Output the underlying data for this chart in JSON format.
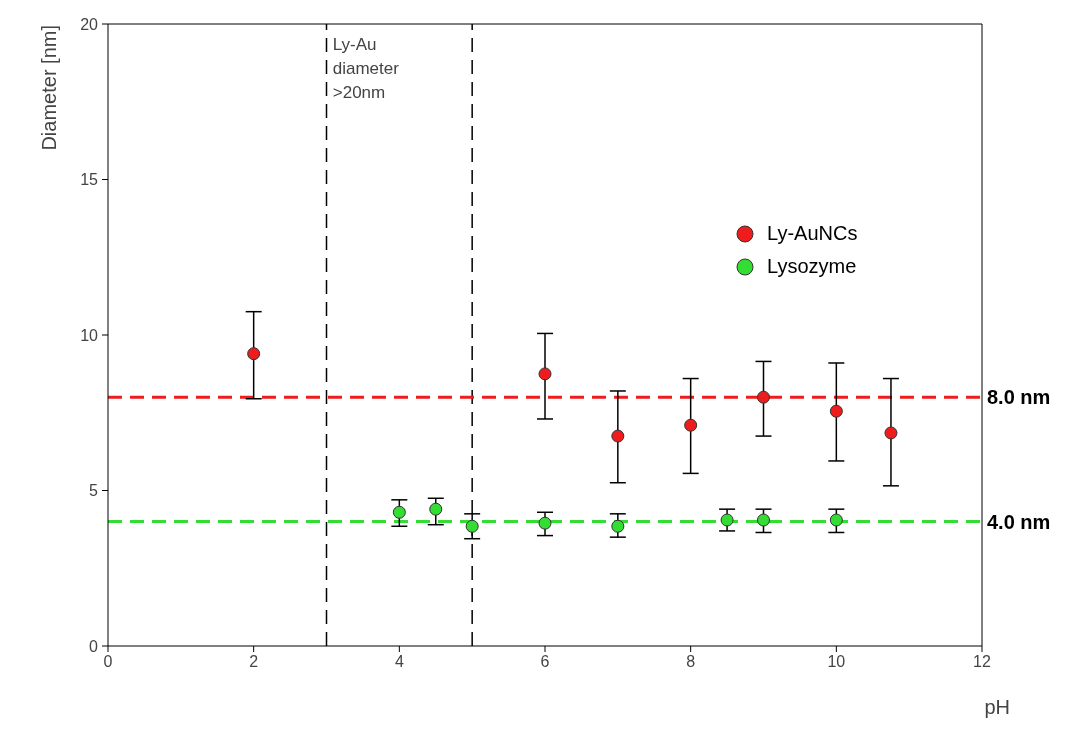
{
  "chart_data": {
    "type": "scatter",
    "xlabel": "pH",
    "ylabel": "Diameter [nm]",
    "xlim": [
      0,
      12
    ],
    "xticks": [
      0,
      2,
      4,
      6,
      8,
      10,
      12
    ],
    "ylim": [
      0,
      20
    ],
    "yticks": [
      0,
      5,
      10,
      15,
      20
    ],
    "marker": "circle",
    "legend": "right",
    "grid": false,
    "series": [
      {
        "name": "Ly-AuNCs",
        "color": "#ee1c1c",
        "x": [
          2,
          6,
          7,
          8,
          9,
          10,
          10.75
        ],
        "values": [
          9.4,
          8.75,
          6.75,
          7.1,
          8.0,
          7.55,
          6.85
        ],
        "errors": [
          [
            7.95,
            10.75
          ],
          [
            7.3,
            10.05
          ],
          [
            5.25,
            8.2
          ],
          [
            5.55,
            8.6
          ],
          [
            6.75,
            9.15
          ],
          [
            5.95,
            9.1
          ],
          [
            5.15,
            8.6
          ]
        ]
      },
      {
        "name": "Lysozyme",
        "color": "#33dd33",
        "x": [
          4,
          4.5,
          5,
          6,
          7,
          8.5,
          9,
          10
        ],
        "values": [
          4.3,
          4.4,
          3.85,
          3.95,
          3.85,
          4.05,
          4.05,
          4.05
        ],
        "errors": [
          [
            3.85,
            4.7
          ],
          [
            3.9,
            4.75
          ],
          [
            3.45,
            4.25
          ],
          [
            3.55,
            4.3
          ],
          [
            3.5,
            4.25
          ],
          [
            3.7,
            4.4
          ],
          [
            3.65,
            4.4
          ],
          [
            3.65,
            4.4
          ]
        ]
      }
    ],
    "ref_lines": [
      {
        "axis": "x",
        "value": 3,
        "color": "#000000",
        "line_style": "dashed"
      },
      {
        "axis": "x",
        "value": 5,
        "color": "#000000",
        "line_style": "dashed"
      },
      {
        "axis": "y",
        "value": 8,
        "label": "8.0 nm",
        "color": "#ee1c1c",
        "line_style": "dashed"
      },
      {
        "axis": "y",
        "value": 4,
        "label": "4.0 nm",
        "color": "#33dd33",
        "line_style": "dashed"
      }
    ],
    "annotations": [
      "Ly-Au diameter >20nm"
    ]
  }
}
